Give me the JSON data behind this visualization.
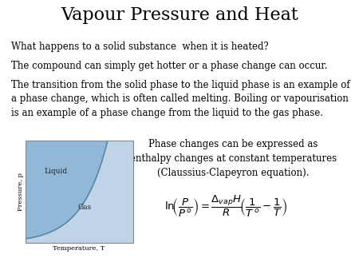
{
  "title": "Vapour Pressure and Heat",
  "title_fontsize": 16,
  "background_color": "#ffffff",
  "text_color": "#000000",
  "line1": "What happens to a solid substance  when it is heated?",
  "line2": "The compound can simply get hotter or a phase change can occur.",
  "line3": "The transition from the solid phase to the liquid phase is an example of\na phase change, which is often called melting. Boiling or vapourisation\nis an example of a phase change from the liquid to the gas phase.",
  "right_text": "Phase changes can be expressed as\nenthalpy changes at constant temperatures\n(Claussius-Clapeyron equation).",
  "body_fontsize": 8.5,
  "liquid_label": "Liquid",
  "gas_label": "Gas",
  "xlabel": "Temperature, T",
  "ylabel": "Pressure, p",
  "liquid_color": "#92b8d8",
  "gas_color": "#c0d4e8"
}
